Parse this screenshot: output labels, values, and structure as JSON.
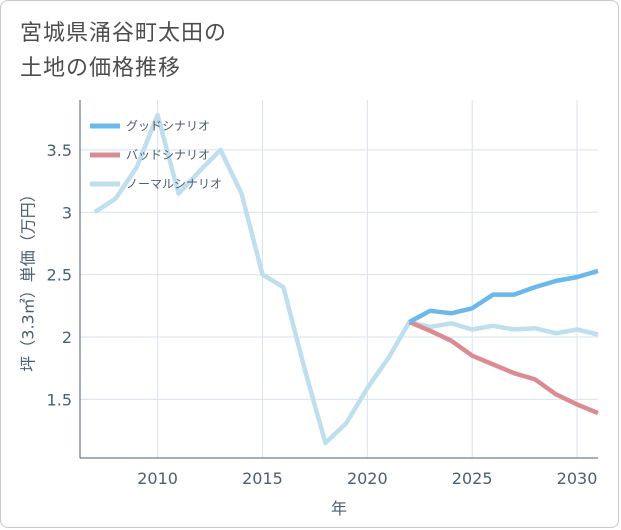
{
  "title": {
    "line1": "宮城県涌谷町太田の",
    "line2": "土地の価格推移"
  },
  "chart_data": {
    "type": "line",
    "title": "宮城県涌谷町太田の土地の価格推移",
    "xlabel": "年",
    "ylabel": "坪（3.3㎡）単価（万円）",
    "xlim": [
      2006.3,
      2031
    ],
    "ylim": [
      1.03,
      3.9
    ],
    "x_ticks": [
      2010,
      2015,
      2020,
      2025,
      2030
    ],
    "x_tick_labels": [
      "2010",
      "2015",
      "2020",
      "2025",
      "2030"
    ],
    "y_ticks": [
      1.5,
      2,
      2.5,
      3,
      3.5
    ],
    "y_tick_labels": [
      "1.5",
      "2",
      "2.5",
      "3",
      "3.5"
    ],
    "grid": true,
    "legend_position": "top-left",
    "series": [
      {
        "name": "グッドシナリオ",
        "color": "#6ab8ec",
        "x": [
          2022,
          2023,
          2024,
          2025,
          2026,
          2027,
          2028,
          2029,
          2030,
          2031
        ],
        "values": [
          2.12,
          2.21,
          2.19,
          2.23,
          2.34,
          2.34,
          2.4,
          2.45,
          2.48,
          2.53
        ]
      },
      {
        "name": "バッドシナリオ",
        "color": "#db8c93",
        "x": [
          2022,
          2023,
          2024,
          2025,
          2026,
          2027,
          2028,
          2029,
          2030,
          2031
        ],
        "values": [
          2.12,
          2.05,
          1.97,
          1.85,
          1.78,
          1.71,
          1.66,
          1.54,
          1.46,
          1.39
        ]
      },
      {
        "name": "ノーマルシナリオ",
        "color": "#bfdfee",
        "x": [
          2007,
          2008,
          2009,
          2010,
          2011,
          2012,
          2013,
          2014,
          2015,
          2016,
          2017,
          2018,
          2019,
          2020,
          2021,
          2022,
          2023,
          2024,
          2025,
          2026,
          2027,
          2028,
          2029,
          2030,
          2031
        ],
        "values": [
          3.0,
          3.11,
          3.36,
          3.78,
          3.15,
          3.33,
          3.5,
          3.15,
          2.5,
          2.4,
          1.75,
          1.15,
          1.31,
          1.59,
          1.83,
          2.12,
          2.08,
          2.11,
          2.06,
          2.09,
          2.06,
          2.07,
          2.03,
          2.06,
          2.02
        ]
      }
    ]
  }
}
